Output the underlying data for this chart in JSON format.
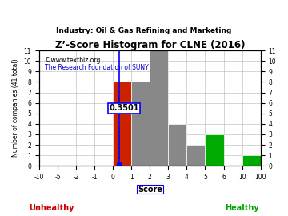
{
  "title": "Z’-Score Histogram for CLNE (2016)",
  "subtitle": "Industry: Oil & Gas Refining and Marketing",
  "watermark1": "©www.textbiz.org",
  "watermark2": "The Research Foundation of SUNY",
  "xlabel": "Score",
  "ylabel": "Number of companies (41 total)",
  "unhealthy_label": "Unhealthy",
  "healthy_label": "Healthy",
  "bin_labels": [
    "-10",
    "-5",
    "-2",
    "-1",
    "0",
    "1",
    "2",
    "3",
    "4",
    "5",
    "6",
    "10",
    "100"
  ],
  "bar_heights": [
    0,
    0,
    0,
    0,
    8,
    8,
    11,
    4,
    2,
    3,
    0,
    1
  ],
  "bar_colors": [
    "#808080",
    "#808080",
    "#808080",
    "#808080",
    "#cc2200",
    "#888888",
    "#888888",
    "#888888",
    "#888888",
    "#00aa00",
    "#808080",
    "#00aa00"
  ],
  "score_line_bin": 4.35,
  "score_label": "0.3501",
  "ylim": [
    0,
    11
  ],
  "yticks": [
    0,
    1,
    2,
    3,
    4,
    5,
    6,
    7,
    8,
    9,
    10,
    11
  ],
  "bg_color": "#ffffff",
  "grid_color": "#aaaaaa",
  "title_color": "#000000",
  "subtitle_color": "#000000",
  "watermark1_color": "#000000",
  "watermark2_color": "#0000cc",
  "unhealthy_color": "#cc0000",
  "healthy_color": "#00aa00"
}
